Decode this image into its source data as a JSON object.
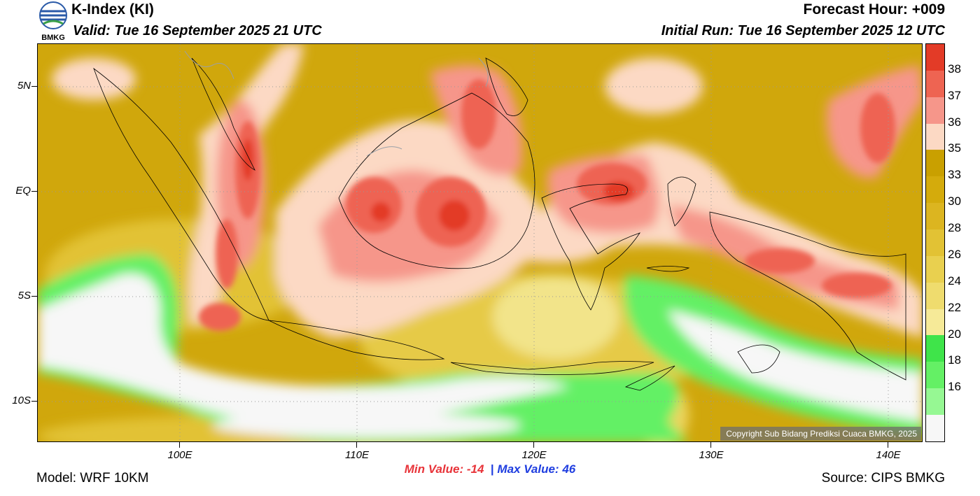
{
  "header": {
    "title": "K-Index (KI)",
    "valid": "Valid: Tue 16 September 2025 21 UTC",
    "forecast_hour": "Forecast Hour: +009",
    "initial_run": "Initial Run: Tue 16 September 2025 12 UTC",
    "logo_text": "BMKG"
  },
  "map": {
    "copyright": "Copyright Sub Bidang Prediksi Cuaca BMKG, 2025",
    "lat_labels": [
      "5N",
      "EQ",
      "5S",
      "10S"
    ],
    "lon_labels": [
      "100E",
      "110E",
      "120E",
      "130E",
      "140E"
    ]
  },
  "colorbar": {
    "labels": [
      "38",
      "37",
      "36",
      "35",
      "33",
      "30",
      "28",
      "26",
      "24",
      "22",
      "20",
      "18",
      "16"
    ],
    "colors": [
      "#e33b27",
      "#ee6452",
      "#f6968a",
      "#fcd9c4",
      "#c9a000",
      "#d4ab0c",
      "#dcb520",
      "#e2c234",
      "#e9d04f",
      "#efdc6e",
      "#f6ea98",
      "#3fe44a",
      "#64f065",
      "#96f893",
      "#f7f7f7"
    ]
  },
  "footer": {
    "min_label": "Min Value:",
    "min_value": "-14",
    "separator": "|",
    "max_label": "Max Value:",
    "max_value": "46",
    "model": "Model: WRF 10KM",
    "source": "Source: CIPS BMKG"
  }
}
